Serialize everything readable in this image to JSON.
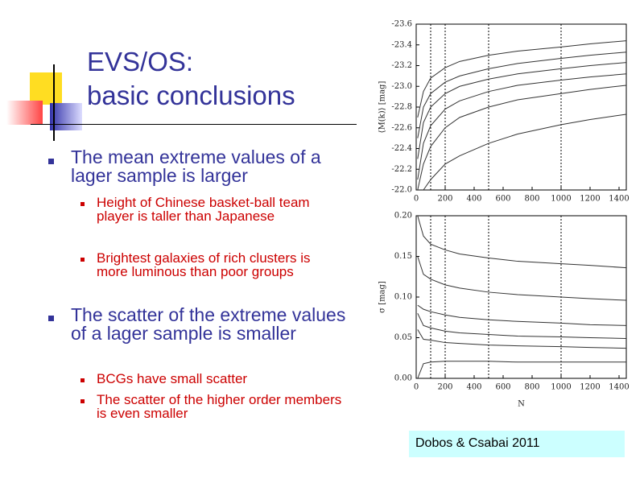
{
  "slide": {
    "title_lines": [
      "EVS/OS:",
      "basic conclusions"
    ],
    "bullets": [
      {
        "text": "The mean extreme values of a lager sample  is larger",
        "sub": [
          "Height of Chinese basket-ball team player is taller than Japanese",
          "Brightest galaxies of rich clusters is more luminous than poor groups"
        ]
      },
      {
        "text": "The scatter of the extreme values of a lager sample  is smaller",
        "sub": [
          "BCGs have small scatter",
          "The scatter of the higher order members is even smaller"
        ]
      }
    ],
    "caption": "Dobos & Csabai  2011"
  },
  "chart_data": [
    {
      "type": "line",
      "ylabel": "⟨M(k)⟩ [mag]",
      "x": [
        10,
        50,
        100,
        200,
        300,
        500,
        700,
        1000,
        1200,
        1450
      ],
      "xlim": [
        0,
        1450
      ],
      "xticks": [
        0,
        200,
        400,
        600,
        800,
        1000,
        1200,
        1400
      ],
      "ylim": [
        -22.0,
        -23.6
      ],
      "yticks": [
        {
          "value": -22.0,
          "label": "-22.0"
        },
        -22.2,
        -22.4,
        -22.6,
        -22.8,
        {
          "value": -23.0,
          "label": "-23.0"
        },
        -23.2,
        -23.4,
        -23.6
      ],
      "reference_lines": [
        100,
        200,
        500,
        1000
      ],
      "series": [
        {
          "color": "#333333",
          "values": [
            -22.7,
            -22.95,
            -23.08,
            -23.18,
            -23.24,
            -23.3,
            -23.34,
            -23.38,
            -23.41,
            -23.44
          ]
        },
        {
          "color": "#333333",
          "values": [
            -22.5,
            -22.8,
            -22.93,
            -23.04,
            -23.1,
            -23.17,
            -23.22,
            -23.27,
            -23.3,
            -23.33
          ]
        },
        {
          "color": "#333333",
          "values": [
            -22.3,
            -22.65,
            -22.8,
            -22.93,
            -23.0,
            -23.07,
            -23.12,
            -23.17,
            -23.2,
            -23.23
          ]
        },
        {
          "color": "#333333",
          "values": [
            -22.1,
            -22.45,
            -22.62,
            -22.78,
            -22.86,
            -22.95,
            -23.01,
            -23.06,
            -23.09,
            -23.12
          ]
        },
        {
          "color": "#333333",
          "values": [
            -22.0,
            -22.25,
            -22.42,
            -22.6,
            -22.7,
            -22.8,
            -22.87,
            -22.93,
            -22.97,
            -23.01
          ]
        },
        {
          "color": "#333333",
          "values": [
            null,
            -22.0,
            -22.1,
            -22.25,
            -22.33,
            -22.45,
            -22.54,
            -22.63,
            -22.68,
            -22.73
          ]
        }
      ]
    },
    {
      "type": "line",
      "ylabel": "σ [mag]",
      "xlabel": "N",
      "x": [
        10,
        50,
        100,
        200,
        300,
        500,
        700,
        1000,
        1200,
        1450
      ],
      "xlim": [
        0,
        1450
      ],
      "xticks": [
        0,
        200,
        400,
        600,
        800,
        1000,
        1200,
        1400
      ],
      "ylim": [
        0,
        0.2
      ],
      "yticks": [
        {
          "value": 0,
          "label": "0.00"
        },
        0.05,
        {
          "value": 0.1,
          "label": "0.10"
        },
        0.15,
        {
          "value": 0.2,
          "label": "0.20"
        }
      ],
      "reference_lines": [
        100,
        200,
        500,
        1000
      ],
      "series": [
        {
          "color": "#333333",
          "values": [
            0.2,
            0.175,
            0.165,
            0.158,
            0.153,
            0.148,
            0.144,
            0.141,
            0.139,
            0.136
          ]
        },
        {
          "color": "#333333",
          "values": [
            0.15,
            0.128,
            0.122,
            0.115,
            0.111,
            0.106,
            0.103,
            0.1,
            0.098,
            0.096
          ]
        },
        {
          "color": "#333333",
          "values": [
            0.09,
            0.085,
            0.082,
            0.078,
            0.075,
            0.072,
            0.07,
            0.068,
            0.066,
            0.065
          ]
        },
        {
          "color": "#333333",
          "values": [
            0.08,
            0.065,
            0.062,
            0.058,
            0.056,
            0.054,
            0.052,
            0.051,
            0.05,
            0.049
          ]
        },
        {
          "color": "#333333",
          "values": [
            0.06,
            0.048,
            0.047,
            0.044,
            0.043,
            0.041,
            0.04,
            0.039,
            0.038,
            0.037
          ]
        },
        {
          "color": "#333333",
          "values": [
            0.0,
            0.018,
            0.02,
            0.021,
            0.021,
            0.021,
            0.02,
            0.02,
            0.02,
            0.02
          ]
        }
      ]
    }
  ]
}
